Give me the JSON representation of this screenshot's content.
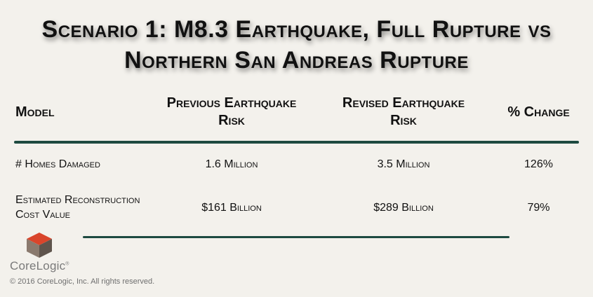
{
  "title": {
    "line1": "Scenario 1: M8.3 Earthquake, Full Rupture vs",
    "line2": "Northern San Andreas Rupture"
  },
  "table": {
    "headers": {
      "model": "Model",
      "previous_line1": "Previous Earthquake",
      "previous_line2": "Risk",
      "revised_line1": "Revised Earthquake",
      "revised_line2": "Risk",
      "change": "% Change"
    },
    "rows": [
      {
        "label": "# Homes Damaged",
        "previous": "1.6 Million",
        "revised": "3.5 Million",
        "change": "126%"
      },
      {
        "label_line1": "Estimated Reconstruction",
        "label_line2": "Cost Value",
        "previous": "$161 Billion",
        "revised": "$289 Billion",
        "change": "79%"
      }
    ]
  },
  "branding": {
    "logo_text": "CoreLogic",
    "trademark": "®",
    "copyright": "© 2016 CoreLogic, Inc. All rights reserved.",
    "colors": {
      "cube_top": "#d9452b",
      "cube_left": "#8a7a6e",
      "cube_right": "#5e544c",
      "rule": "#1d4a40"
    }
  }
}
